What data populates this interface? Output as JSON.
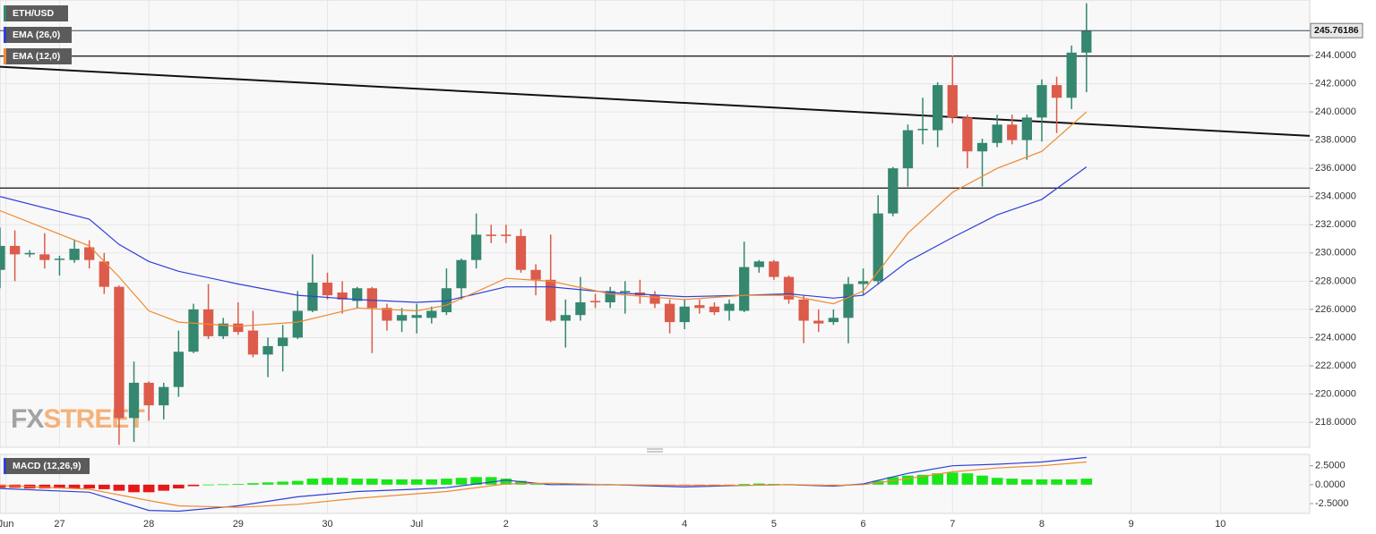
{
  "chart_data": [
    {
      "type": "candlestick",
      "x": [
        0,
        1,
        2,
        3,
        4,
        5,
        6,
        7,
        8,
        9,
        10,
        11,
        12,
        13,
        14,
        15,
        16,
        17,
        18,
        19,
        20,
        21,
        22,
        23,
        24,
        25,
        26,
        27,
        28,
        29,
        30,
        31,
        32,
        33,
        34,
        35,
        36,
        37,
        38,
        39,
        40,
        41,
        42,
        43,
        44,
        45,
        46,
        47,
        48,
        49,
        50,
        51,
        52,
        53,
        54,
        55,
        56,
        57,
        58,
        59,
        60,
        61,
        62,
        63,
        64,
        65,
        66,
        67,
        68,
        69,
        70,
        71,
        72,
        73
      ],
      "series": [
        {
          "name": "ETH/USD",
          "color": "#35876f",
          "up_color": "#35876f",
          "down_color": "#dc5b4b",
          "open": [
            228.8,
            230.5,
            229.9,
            229.9,
            229.6,
            229.5,
            230.4,
            229.4,
            227.6,
            218.3,
            220.8,
            219.2,
            220.5,
            223.0,
            226.0,
            224.1,
            225.0,
            224.5,
            222.8,
            223.4,
            224.0,
            225.9,
            227.9,
            227.2,
            226.6,
            227.5,
            226.1,
            225.2,
            225.4,
            225.4,
            225.8,
            227.5,
            229.5,
            231.3,
            231.3,
            231.2,
            228.8,
            228.1,
            225.2,
            225.6,
            226.6,
            226.5,
            227.2,
            227.2,
            227.0,
            226.4,
            225.1,
            226.3,
            226.2,
            225.9,
            225.9,
            229.0,
            229.4,
            228.3,
            226.7,
            225.2,
            225.1,
            225.4,
            227.8,
            228.0,
            232.8,
            236.0,
            238.7,
            238.7,
            241.9,
            239.6,
            237.2,
            237.8,
            239.1,
            238.0,
            239.6,
            241.9,
            241.0,
            244.2
          ],
          "high": [
            231.8,
            231.6,
            230.2,
            231.4,
            229.8,
            230.9,
            230.9,
            230.0,
            227.7,
            222.3,
            220.9,
            220.8,
            224.5,
            226.4,
            227.8,
            225.4,
            226.5,
            225.9,
            224.0,
            224.9,
            227.3,
            229.9,
            228.6,
            228.0,
            227.6,
            227.6,
            226.4,
            226.1,
            226.4,
            226.2,
            228.9,
            229.6,
            232.8,
            232.0,
            232.0,
            231.7,
            229.2,
            231.3,
            226.7,
            228.3,
            227.1,
            227.6,
            228.0,
            228.1,
            227.3,
            226.7,
            226.7,
            226.7,
            226.5,
            226.7,
            230.8,
            229.5,
            229.5,
            228.4,
            227.0,
            226.0,
            226.0,
            228.3,
            228.9,
            234.1,
            236.1,
            239.1,
            241.0,
            242.1,
            244.0,
            239.8,
            238.1,
            239.8,
            239.8,
            239.8,
            242.3,
            242.5,
            244.7,
            247.7
          ],
          "low": [
            227.5,
            228.0,
            229.7,
            228.9,
            228.4,
            229.3,
            228.9,
            227.1,
            216.4,
            216.6,
            218.1,
            218.2,
            219.8,
            222.9,
            223.9,
            223.9,
            224.2,
            222.6,
            221.2,
            221.6,
            223.9,
            225.8,
            226.7,
            225.7,
            226.1,
            222.9,
            224.5,
            224.4,
            224.3,
            225.0,
            225.6,
            226.7,
            228.9,
            230.7,
            230.7,
            228.6,
            227.0,
            225.1,
            223.3,
            225.2,
            226.1,
            226.1,
            225.7,
            226.4,
            226.1,
            224.3,
            224.6,
            225.7,
            225.6,
            225.2,
            225.8,
            228.6,
            228.1,
            226.4,
            223.6,
            224.4,
            224.9,
            223.6,
            227.0,
            227.8,
            232.6,
            234.7,
            237.7,
            237.5,
            239.2,
            236.0,
            234.7,
            237.5,
            237.7,
            236.6,
            237.9,
            238.5,
            240.2,
            241.4
          ],
          "close": [
            230.5,
            229.9,
            230.0,
            229.5,
            229.6,
            230.3,
            229.5,
            227.6,
            218.3,
            220.8,
            219.2,
            220.5,
            223.0,
            226.0,
            224.1,
            225.0,
            224.4,
            222.8,
            223.4,
            224.0,
            225.9,
            227.9,
            227.0,
            226.7,
            227.5,
            226.1,
            225.2,
            225.6,
            225.6,
            225.9,
            227.5,
            229.5,
            231.3,
            231.2,
            231.2,
            228.8,
            228.1,
            225.2,
            225.6,
            226.5,
            226.5,
            227.3,
            227.3,
            227.0,
            226.4,
            225.1,
            226.2,
            226.1,
            225.8,
            226.4,
            229.0,
            229.4,
            228.3,
            226.7,
            225.2,
            225.0,
            225.4,
            227.8,
            228.0,
            232.8,
            236.0,
            238.7,
            238.8,
            241.9,
            239.6,
            237.2,
            237.8,
            239.1,
            238.0,
            239.6,
            241.9,
            241.0,
            244.2,
            245.76186
          ]
        },
        {
          "name": "EMA (26,0)",
          "color": "#2f3fd8",
          "x": [
            0,
            6,
            8,
            10,
            12,
            16,
            20,
            24,
            28,
            30,
            34,
            37,
            41,
            46,
            50,
            53,
            56,
            58,
            61,
            64,
            67,
            70,
            73
          ],
          "values": [
            234.0,
            232.4,
            230.6,
            229.4,
            228.7,
            227.8,
            227.0,
            226.7,
            226.5,
            226.6,
            227.6,
            227.6,
            227.2,
            226.9,
            227.0,
            227.1,
            226.8,
            227.0,
            229.4,
            231.1,
            232.7,
            233.8,
            236.1
          ]
        },
        {
          "name": "EMA (12,0)",
          "color": "#f08a30",
          "x": [
            0,
            6,
            8,
            10,
            12,
            16,
            20,
            24,
            28,
            30,
            34,
            37,
            41,
            46,
            50,
            53,
            56,
            58,
            61,
            64,
            67,
            70,
            73
          ],
          "values": [
            233.0,
            230.5,
            228.3,
            225.9,
            225.1,
            224.8,
            225.1,
            226.1,
            225.9,
            226.3,
            228.2,
            228.0,
            227.1,
            226.7,
            227.0,
            227.0,
            226.4,
            227.3,
            231.4,
            234.3,
            236.0,
            237.2,
            240.0
          ]
        }
      ],
      "xlim": [
        0,
        88
      ],
      "ylim": [
        216.23,
        247.93
      ],
      "yticks": [
        {
          "value": 218,
          "label": "218.0000"
        },
        {
          "value": 220,
          "label": "220.0000"
        },
        {
          "value": 222,
          "label": "222.0000"
        },
        {
          "value": 224,
          "label": "224.0000"
        },
        {
          "value": 226,
          "label": "226.0000"
        },
        {
          "value": 228,
          "label": "228.0000"
        },
        {
          "value": 230,
          "label": "230.0000"
        },
        {
          "value": 232,
          "label": "232.0000"
        },
        {
          "value": 234,
          "label": "234.0000"
        },
        {
          "value": 236,
          "label": "236.0000"
        },
        {
          "value": 238,
          "label": "238.0000"
        },
        {
          "value": 240,
          "label": "240.0000"
        },
        {
          "value": 242,
          "label": "242.0000"
        },
        {
          "value": 244,
          "label": "244.0000"
        }
      ],
      "xticks": [
        {
          "value": 0.4,
          "label": "Jun"
        },
        {
          "value": 4,
          "label": "27"
        },
        {
          "value": 10,
          "label": "28"
        },
        {
          "value": 16,
          "label": "29"
        },
        {
          "value": 22,
          "label": "30"
        },
        {
          "value": 28,
          "label": "Jul"
        },
        {
          "value": 34,
          "label": "2"
        },
        {
          "value": 40,
          "label": "3"
        },
        {
          "value": 46,
          "label": "4"
        },
        {
          "value": 52,
          "label": "5"
        },
        {
          "value": 58,
          "label": "6"
        },
        {
          "value": 64,
          "label": "7"
        },
        {
          "value": 70,
          "label": "8"
        },
        {
          "value": 76,
          "label": "9"
        },
        {
          "value": 82,
          "label": "10"
        }
      ],
      "hlines": [
        243.95,
        234.6
      ],
      "trendline": {
        "x": [
          0,
          88
        ],
        "values": [
          243.2,
          238.3
        ]
      },
      "grid": true,
      "watermark": [
        "FX",
        "STREET"
      ]
    },
    {
      "type": "macd",
      "title": "MACD (12,26,9)",
      "x": [
        0,
        1,
        2,
        3,
        4,
        5,
        6,
        7,
        8,
        9,
        10,
        11,
        12,
        13,
        14,
        15,
        16,
        17,
        18,
        19,
        20,
        21,
        22,
        23,
        24,
        25,
        26,
        27,
        28,
        29,
        30,
        31,
        32,
        33,
        34,
        35,
        36,
        37,
        38,
        39,
        40,
        41,
        42,
        43,
        44,
        45,
        46,
        47,
        48,
        49,
        50,
        51,
        52,
        53,
        54,
        55,
        56,
        57,
        58,
        59,
        60,
        61,
        62,
        63,
        64,
        65,
        66,
        67,
        68,
        69,
        70,
        71,
        72,
        73
      ],
      "histogram": {
        "up_color": "#19e619",
        "down_color": "#e61919",
        "values": [
          -0.4,
          -0.4,
          -0.5,
          -0.5,
          -0.5,
          -0.5,
          -0.5,
          -0.6,
          -0.8,
          -1.0,
          -1.0,
          -0.8,
          -0.5,
          -0.2,
          0.02,
          0.05,
          0.1,
          0.2,
          0.3,
          0.4,
          0.5,
          0.8,
          0.9,
          0.9,
          0.8,
          0.8,
          0.7,
          0.7,
          0.7,
          0.7,
          0.8,
          0.9,
          1.0,
          1.0,
          0.8,
          0.5,
          0.2,
          0.05,
          0.1,
          0.05,
          0.05,
          0.0,
          -0.05,
          -0.1,
          -0.1,
          -0.15,
          -0.1,
          -0.1,
          -0.1,
          -0.05,
          0.1,
          0.15,
          0.1,
          0.0,
          -0.1,
          -0.1,
          -0.05,
          0.0,
          0.1,
          0.5,
          1.0,
          1.2,
          1.3,
          1.5,
          1.6,
          1.5,
          1.2,
          0.9,
          0.8,
          0.7,
          0.7,
          0.7,
          0.7,
          0.8
        ]
      },
      "series": [
        {
          "color": "#2f3fd8",
          "x": [
            0,
            6,
            10,
            12,
            16,
            20,
            24,
            28,
            30,
            34,
            37,
            41,
            46,
            50,
            53,
            56,
            58,
            61,
            64,
            67,
            70,
            73
          ],
          "values": [
            -0.5,
            -1.0,
            -3.4,
            -3.5,
            -2.8,
            -1.6,
            -0.9,
            -0.6,
            -0.4,
            0.6,
            0.0,
            0.0,
            -0.3,
            -0.1,
            0.0,
            -0.2,
            0.1,
            1.5,
            2.5,
            2.7,
            3.0,
            3.6
          ]
        },
        {
          "color": "#f08a30",
          "x": [
            0,
            6,
            10,
            12,
            16,
            20,
            24,
            28,
            30,
            34,
            37,
            41,
            46,
            50,
            53,
            56,
            58,
            61,
            64,
            67,
            70,
            73
          ],
          "values": [
            -0.1,
            -0.6,
            -2.1,
            -2.8,
            -3.0,
            -2.6,
            -1.8,
            -1.2,
            -0.9,
            0.1,
            0.2,
            0.0,
            -0.1,
            -0.1,
            0.0,
            -0.1,
            0.0,
            0.8,
            1.7,
            2.2,
            2.5,
            3.0
          ]
        }
      ],
      "xlim": [
        0,
        88
      ],
      "ylim": [
        -3.8,
        4.0
      ],
      "yticks": [
        {
          "value": 2.5,
          "label": "2.5000"
        },
        {
          "value": 0,
          "label": "0.0000"
        },
        {
          "value": -2.5,
          "label": "-2.5000"
        }
      ]
    }
  ]
}
